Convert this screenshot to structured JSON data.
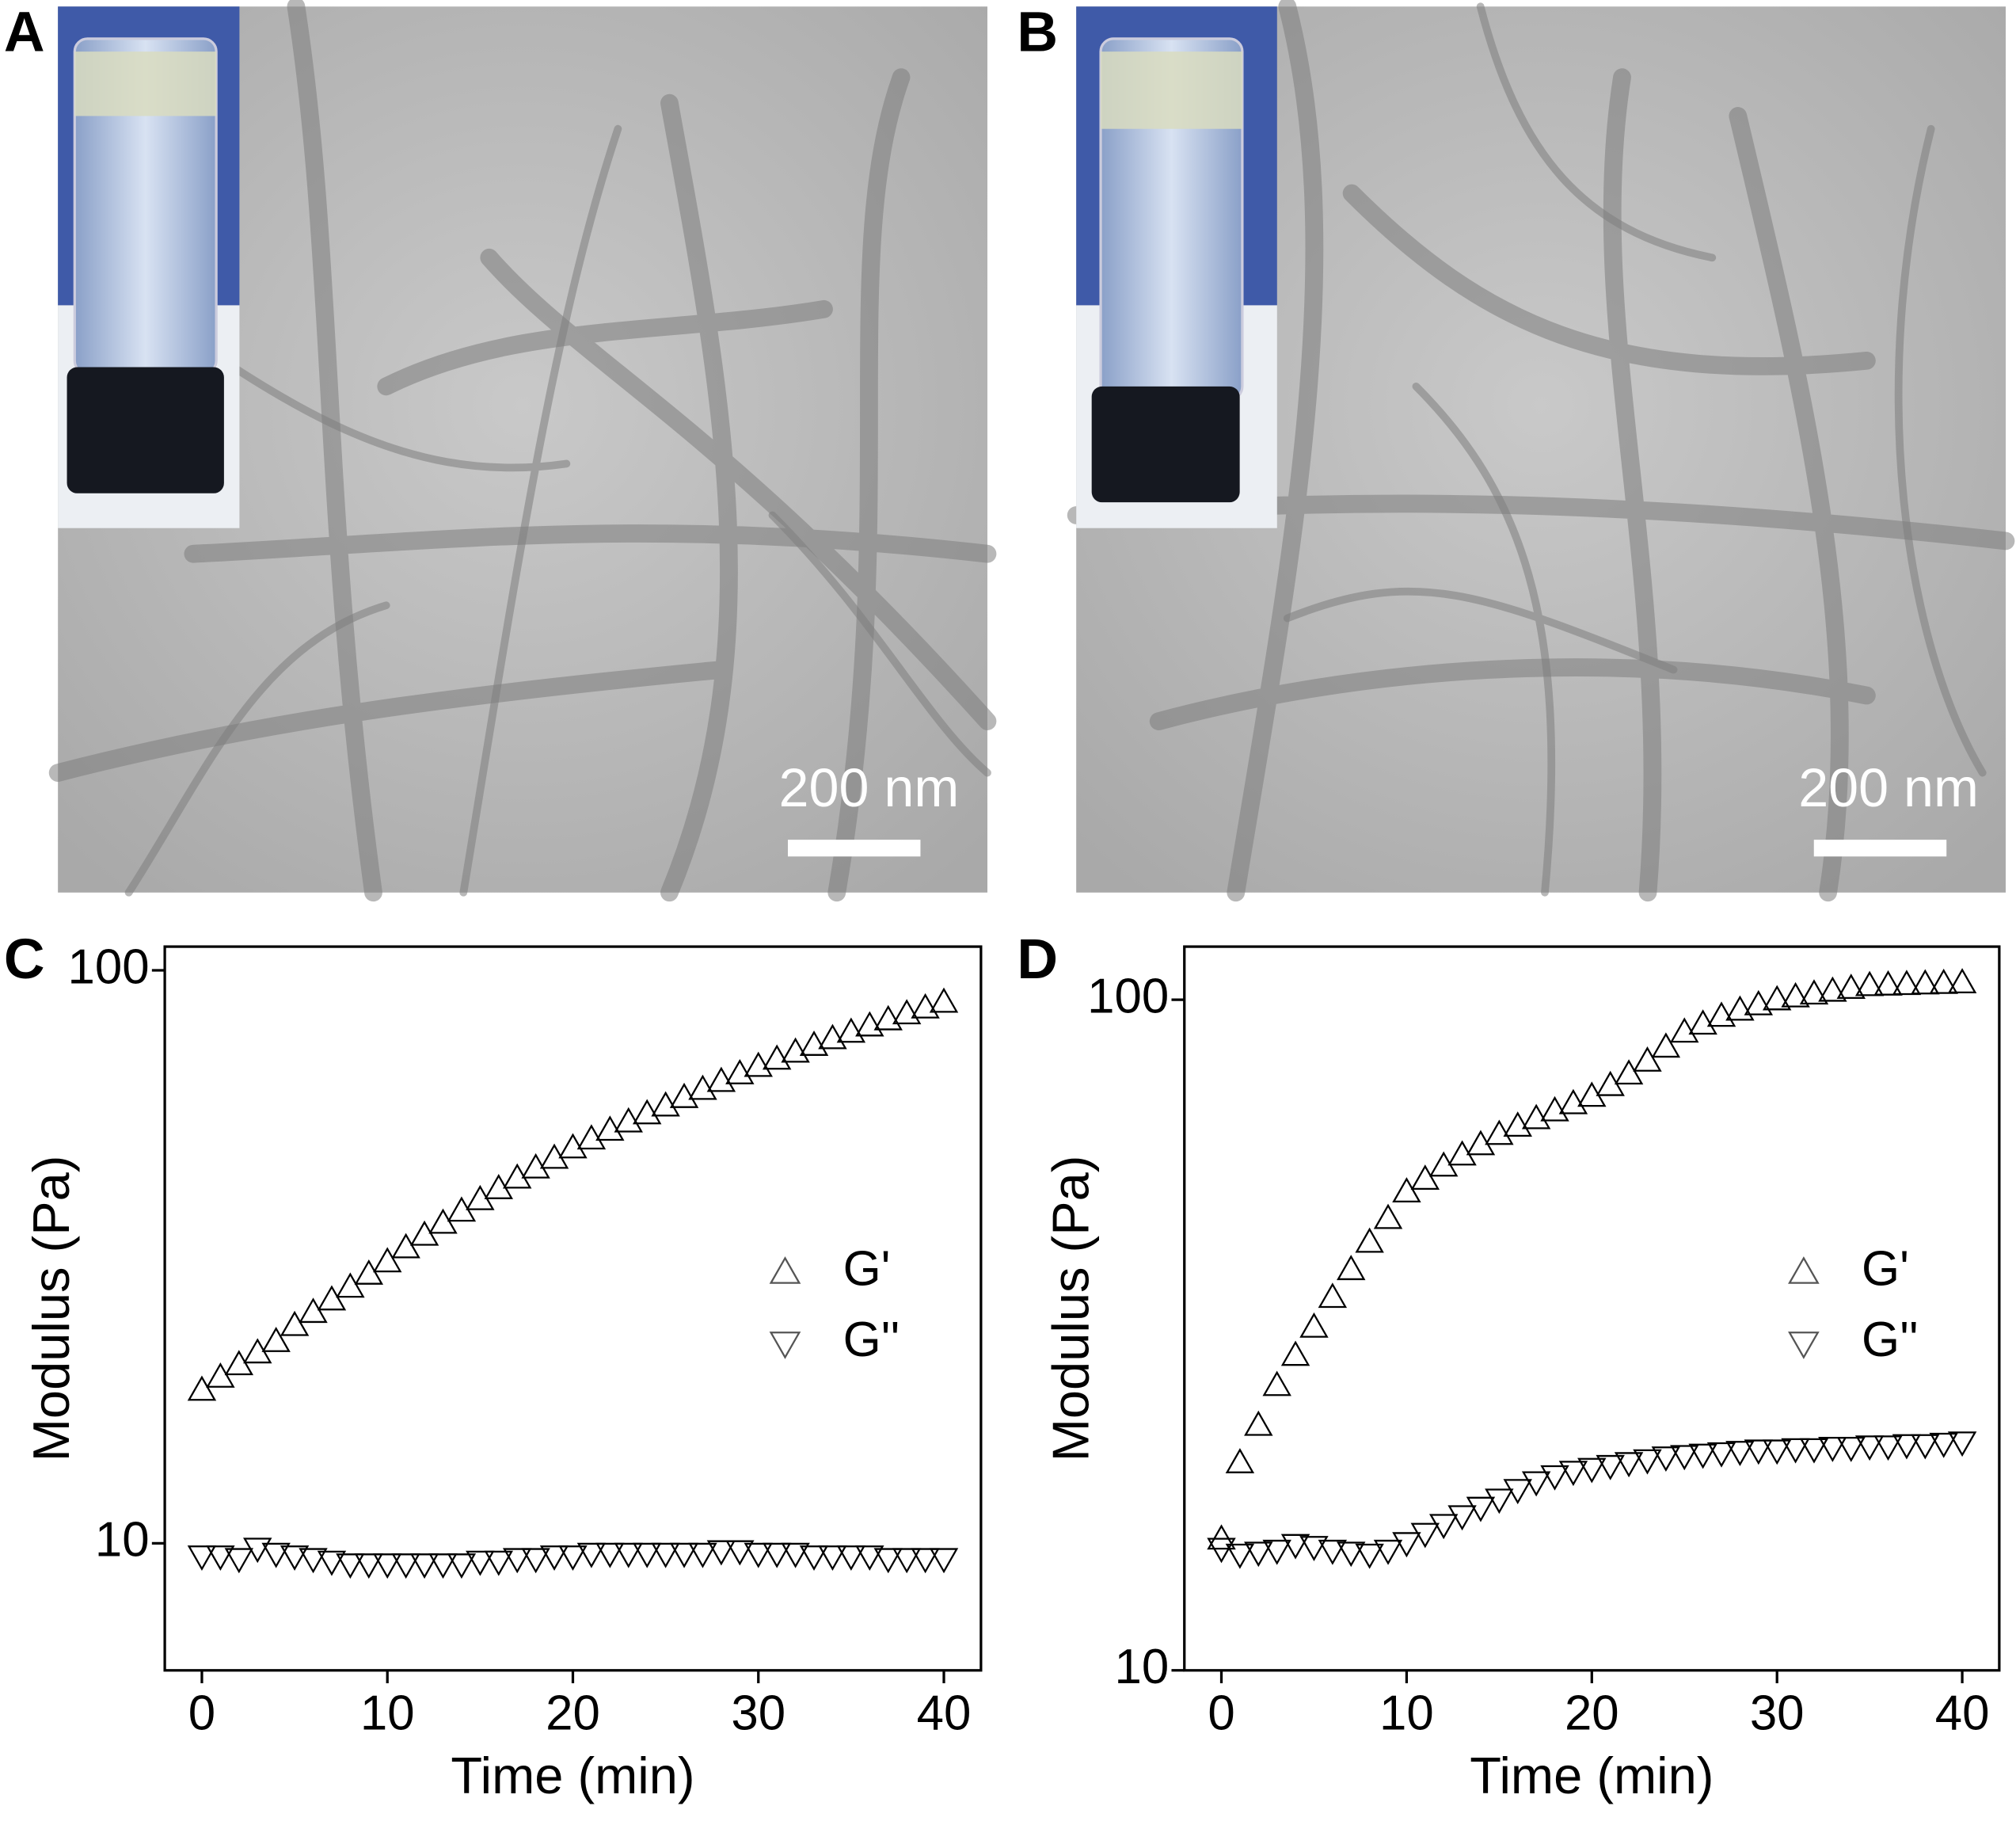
{
  "panels": [
    {
      "label": "A",
      "scale_bar": "200 nm"
    },
    {
      "label": "B",
      "scale_bar": "200 nm"
    }
  ],
  "chart_data": [
    {
      "type": "scatter",
      "panel_label": "C",
      "xlabel": "Time (min)",
      "ylabel": "Modulus (Pa)",
      "x": [
        0,
        1,
        2,
        3,
        4,
        5,
        6,
        7,
        8,
        9,
        10,
        11,
        12,
        13,
        14,
        15,
        16,
        17,
        18,
        19,
        20,
        21,
        22,
        23,
        24,
        25,
        26,
        27,
        28,
        29,
        30,
        31,
        32,
        33,
        34,
        35,
        36,
        37,
        38,
        39,
        40
      ],
      "series": [
        {
          "name": "G'",
          "marker": "triangle-up",
          "color": "#000000",
          "values": [
            18.5,
            19.5,
            20.5,
            21.5,
            22.5,
            24,
            25.3,
            26.6,
            28,
            29.5,
            31,
            32.8,
            34.5,
            36.2,
            38,
            39.8,
            41.6,
            43.4,
            45.2,
            47,
            49,
            50.8,
            52.6,
            54.4,
            56.2,
            58,
            60,
            62,
            64,
            66,
            68,
            70,
            72,
            74,
            76,
            78,
            80,
            82,
            84,
            86,
            88
          ]
        },
        {
          "name": "G''",
          "marker": "triangle-down",
          "color": "#000000",
          "values": [
            9.5,
            9.5,
            9.4,
            9.8,
            9.6,
            9.5,
            9.4,
            9.3,
            9.2,
            9.2,
            9.2,
            9.2,
            9.2,
            9.2,
            9.2,
            9.3,
            9.3,
            9.4,
            9.4,
            9.5,
            9.5,
            9.6,
            9.6,
            9.6,
            9.6,
            9.6,
            9.6,
            9.6,
            9.7,
            9.7,
            9.6,
            9.6,
            9.6,
            9.5,
            9.5,
            9.5,
            9.5,
            9.4,
            9.4,
            9.4,
            9.4
          ]
        }
      ],
      "xlim": [
        -2,
        42
      ],
      "ylim": [
        6,
        110
      ],
      "xticks": [
        0,
        10,
        20,
        30,
        40
      ],
      "yticks": [
        10,
        100
      ],
      "yscale": "log",
      "legend": "center right"
    },
    {
      "type": "scatter",
      "panel_label": "D",
      "xlabel": "Time (min)",
      "ylabel": "Modulus (Pa)",
      "x": [
        0,
        1,
        2,
        3,
        4,
        5,
        6,
        7,
        8,
        9,
        10,
        11,
        12,
        13,
        14,
        15,
        16,
        17,
        18,
        19,
        20,
        21,
        22,
        23,
        24,
        25,
        26,
        27,
        28,
        29,
        30,
        31,
        32,
        33,
        34,
        35,
        36,
        37,
        38,
        39,
        40
      ],
      "series": [
        {
          "name": "G'",
          "marker": "triangle-up",
          "color": "#000000",
          "values": [
            15.7,
            20.4,
            23.2,
            26.6,
            29.5,
            32.5,
            36,
            39.6,
            43.5,
            47.2,
            51.7,
            54,
            56.5,
            58.7,
            60.8,
            63,
            64.8,
            66.5,
            68.3,
            70,
            71.8,
            74.5,
            77.5,
            81,
            85,
            89.5,
            92,
            94.5,
            96.5,
            98.3,
            100,
            101,
            102,
            103,
            104,
            105,
            105.2,
            105.4,
            105.6,
            105.8,
            106
          ]
        },
        {
          "name": "G''",
          "marker": "triangle-down",
          "color": "#000000",
          "values": [
            15.2,
            14.9,
            15,
            15.1,
            15.4,
            15.3,
            15.1,
            15,
            14.9,
            15.1,
            15.5,
            16,
            16.5,
            17,
            17.5,
            18,
            18.6,
            19.1,
            19.5,
            19.8,
            20,
            20.2,
            20.4,
            20.6,
            20.8,
            20.9,
            21,
            21.1,
            21.2,
            21.3,
            21.3,
            21.4,
            21.4,
            21.5,
            21.5,
            21.6,
            21.6,
            21.7,
            21.7,
            21.8,
            21.9
          ]
        }
      ],
      "xlim": [
        -2,
        42
      ],
      "ylim": [
        10,
        120
      ],
      "xticks": [
        0,
        10,
        20,
        30,
        40
      ],
      "yticks": [
        10,
        100
      ],
      "yscale": "log",
      "legend": "center right"
    }
  ]
}
